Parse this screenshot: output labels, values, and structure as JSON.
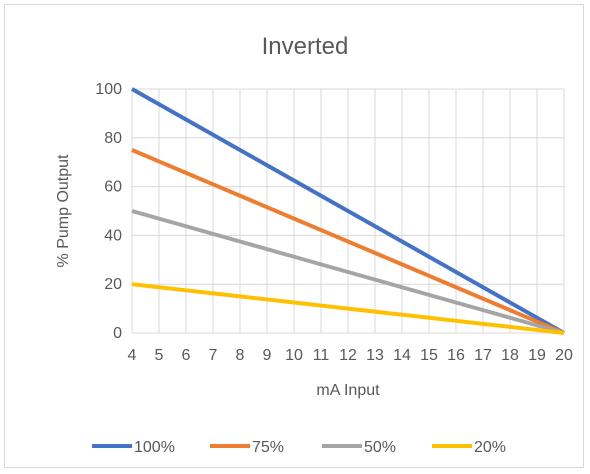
{
  "chart_data": {
    "type": "line",
    "title": "Inverted",
    "xlabel": "mA Input",
    "ylabel": "% Pump Output",
    "x": [
      4,
      5,
      6,
      7,
      8,
      9,
      10,
      11,
      12,
      13,
      14,
      15,
      16,
      17,
      18,
      19,
      20
    ],
    "xlim": [
      4,
      20
    ],
    "ylim": [
      0,
      100
    ],
    "yticks": [
      0,
      20,
      40,
      60,
      80,
      100
    ],
    "grid": true,
    "legend_position": "bottom",
    "series": [
      {
        "name": "100%",
        "color": "#4472c4",
        "values": [
          100,
          93.75,
          87.5,
          81.25,
          75,
          68.75,
          62.5,
          56.25,
          50,
          43.75,
          37.5,
          31.25,
          25,
          18.75,
          12.5,
          6.25,
          0
        ]
      },
      {
        "name": "75%",
        "color": "#ed7d31",
        "values": [
          75,
          70.3125,
          65.625,
          60.9375,
          56.25,
          51.5625,
          46.875,
          42.1875,
          37.5,
          32.8125,
          28.125,
          23.4375,
          18.75,
          14.0625,
          9.375,
          4.6875,
          0
        ]
      },
      {
        "name": "50%",
        "color": "#a5a5a5",
        "values": [
          50,
          46.875,
          43.75,
          40.625,
          37.5,
          34.375,
          31.25,
          28.125,
          25,
          21.875,
          18.75,
          15.625,
          12.5,
          9.375,
          6.25,
          3.125,
          0
        ]
      },
      {
        "name": "20%",
        "color": "#ffc000",
        "values": [
          20,
          18.75,
          17.5,
          16.25,
          15,
          13.75,
          12.5,
          11.25,
          10,
          8.75,
          7.5,
          6.25,
          5,
          3.75,
          2.5,
          1.25,
          0
        ]
      }
    ]
  }
}
